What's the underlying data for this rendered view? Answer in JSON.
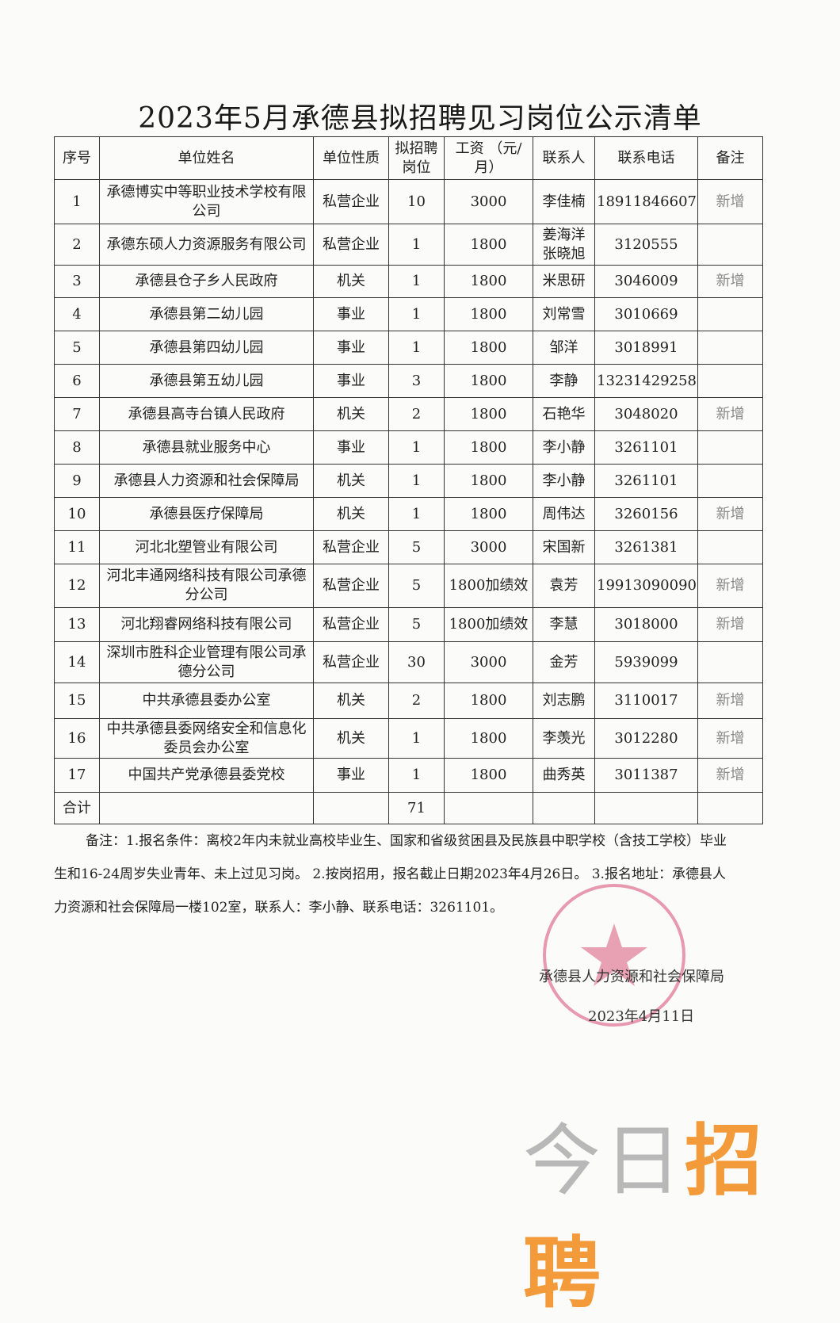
{
  "title": "2023年5月承德县拟招聘见习岗位公示清单",
  "headers": [
    "序号",
    "单位姓名",
    "单位性质",
    "拟招聘岗位",
    "工资 （元/月）",
    "联系人",
    "联系电话",
    "备注"
  ],
  "rows": [
    {
      "no": "1",
      "name": "承德博实中等职业技术学校有限公司",
      "type": "私营企业",
      "positions": "10",
      "salary": "3000",
      "contact": "李佳楠",
      "phone": "18911846607",
      "note": "新增"
    },
    {
      "no": "2",
      "name": "承德东硕人力资源服务有限公司",
      "type": "私营企业",
      "positions": "1",
      "salary": "1800",
      "contact": "姜海洋 张晓旭",
      "phone": "3120555",
      "note": ""
    },
    {
      "no": "3",
      "name": "承德县仓子乡人民政府",
      "type": "机关",
      "positions": "1",
      "salary": "1800",
      "contact": "米思研",
      "phone": "3046009",
      "note": "新增"
    },
    {
      "no": "4",
      "name": "承德县第二幼儿园",
      "type": "事业",
      "positions": "1",
      "salary": "1800",
      "contact": "刘常雪",
      "phone": "3010669",
      "note": ""
    },
    {
      "no": "5",
      "name": "承德县第四幼儿园",
      "type": "事业",
      "positions": "1",
      "salary": "1800",
      "contact": "邹洋",
      "phone": "3018991",
      "note": ""
    },
    {
      "no": "6",
      "name": "承德县第五幼儿园",
      "type": "事业",
      "positions": "3",
      "salary": "1800",
      "contact": "李静",
      "phone": "13231429258",
      "note": ""
    },
    {
      "no": "7",
      "name": "承德县高寺台镇人民政府",
      "type": "机关",
      "positions": "2",
      "salary": "1800",
      "contact": "石艳华",
      "phone": "3048020",
      "note": "新增"
    },
    {
      "no": "8",
      "name": "承德县就业服务中心",
      "type": "事业",
      "positions": "1",
      "salary": "1800",
      "contact": "李小静",
      "phone": "3261101",
      "note": ""
    },
    {
      "no": "9",
      "name": "承德县人力资源和社会保障局",
      "type": "机关",
      "positions": "1",
      "salary": "1800",
      "contact": "李小静",
      "phone": "3261101",
      "note": ""
    },
    {
      "no": "10",
      "name": "承德县医疗保障局",
      "type": "机关",
      "positions": "1",
      "salary": "1800",
      "contact": "周伟达",
      "phone": "3260156",
      "note": "新增"
    },
    {
      "no": "11",
      "name": "河北北塑管业有限公司",
      "type": "私营企业",
      "positions": "5",
      "salary": "3000",
      "contact": "宋国新",
      "phone": "3261381",
      "note": ""
    },
    {
      "no": "12",
      "name": "河北丰通网络科技有限公司承德分公司",
      "type": "私营企业",
      "positions": "5",
      "salary": "1800加绩效",
      "contact": "袁芳",
      "phone": "19913090090",
      "note": "新增"
    },
    {
      "no": "13",
      "name": "河北翔睿网络科技有限公司",
      "type": "私营企业",
      "positions": "5",
      "salary": "1800加绩效",
      "contact": "李慧",
      "phone": "3018000",
      "note": "新增"
    },
    {
      "no": "14",
      "name": "深圳市胜科企业管理有限公司承德分公司",
      "type": "私营企业",
      "positions": "30",
      "salary": "3000",
      "contact": "金芳",
      "phone": "5939099",
      "note": ""
    },
    {
      "no": "15",
      "name": "中共承德县委办公室",
      "type": "机关",
      "positions": "2",
      "salary": "1800",
      "contact": "刘志鹏",
      "phone": "3110017",
      "note": "新增"
    },
    {
      "no": "16",
      "name": "中共承德县委网络安全和信息化委员会办公室",
      "type": "机关",
      "positions": "1",
      "salary": "1800",
      "contact": "李羡光",
      "phone": "3012280",
      "note": "新增"
    },
    {
      "no": "17",
      "name": "中国共产党承德县委党校",
      "type": "事业",
      "positions": "1",
      "salary": "1800",
      "contact": "曲秀英",
      "phone": "3011387",
      "note": "新增"
    }
  ],
  "total": {
    "label": "合计",
    "positions": "71"
  },
  "remark": "备注：1.报名条件：离校2年内未就业高校毕业生、国家和省级贫困县及民族县中职学校（含技工学校）毕业生和16-24周岁失业青年、未上过见习岗。 2.按岗招用，报名截止日期2023年4月26日。 3.报名地址：承德县人力资源和社会保障局一楼102室，联系人：李小静、联系电话：3261101。",
  "signature": "承德县人力资源和社会保障局",
  "date": "2023年4月11日",
  "stamp_text": "承德县人力资源和社会保障局",
  "stamp_color": "#e07a95",
  "watermark": {
    "part1": "今日",
    "part2": "招聘"
  },
  "watermark_colors": {
    "part1": "#b8b8b8",
    "part2": "#f39a3a"
  }
}
